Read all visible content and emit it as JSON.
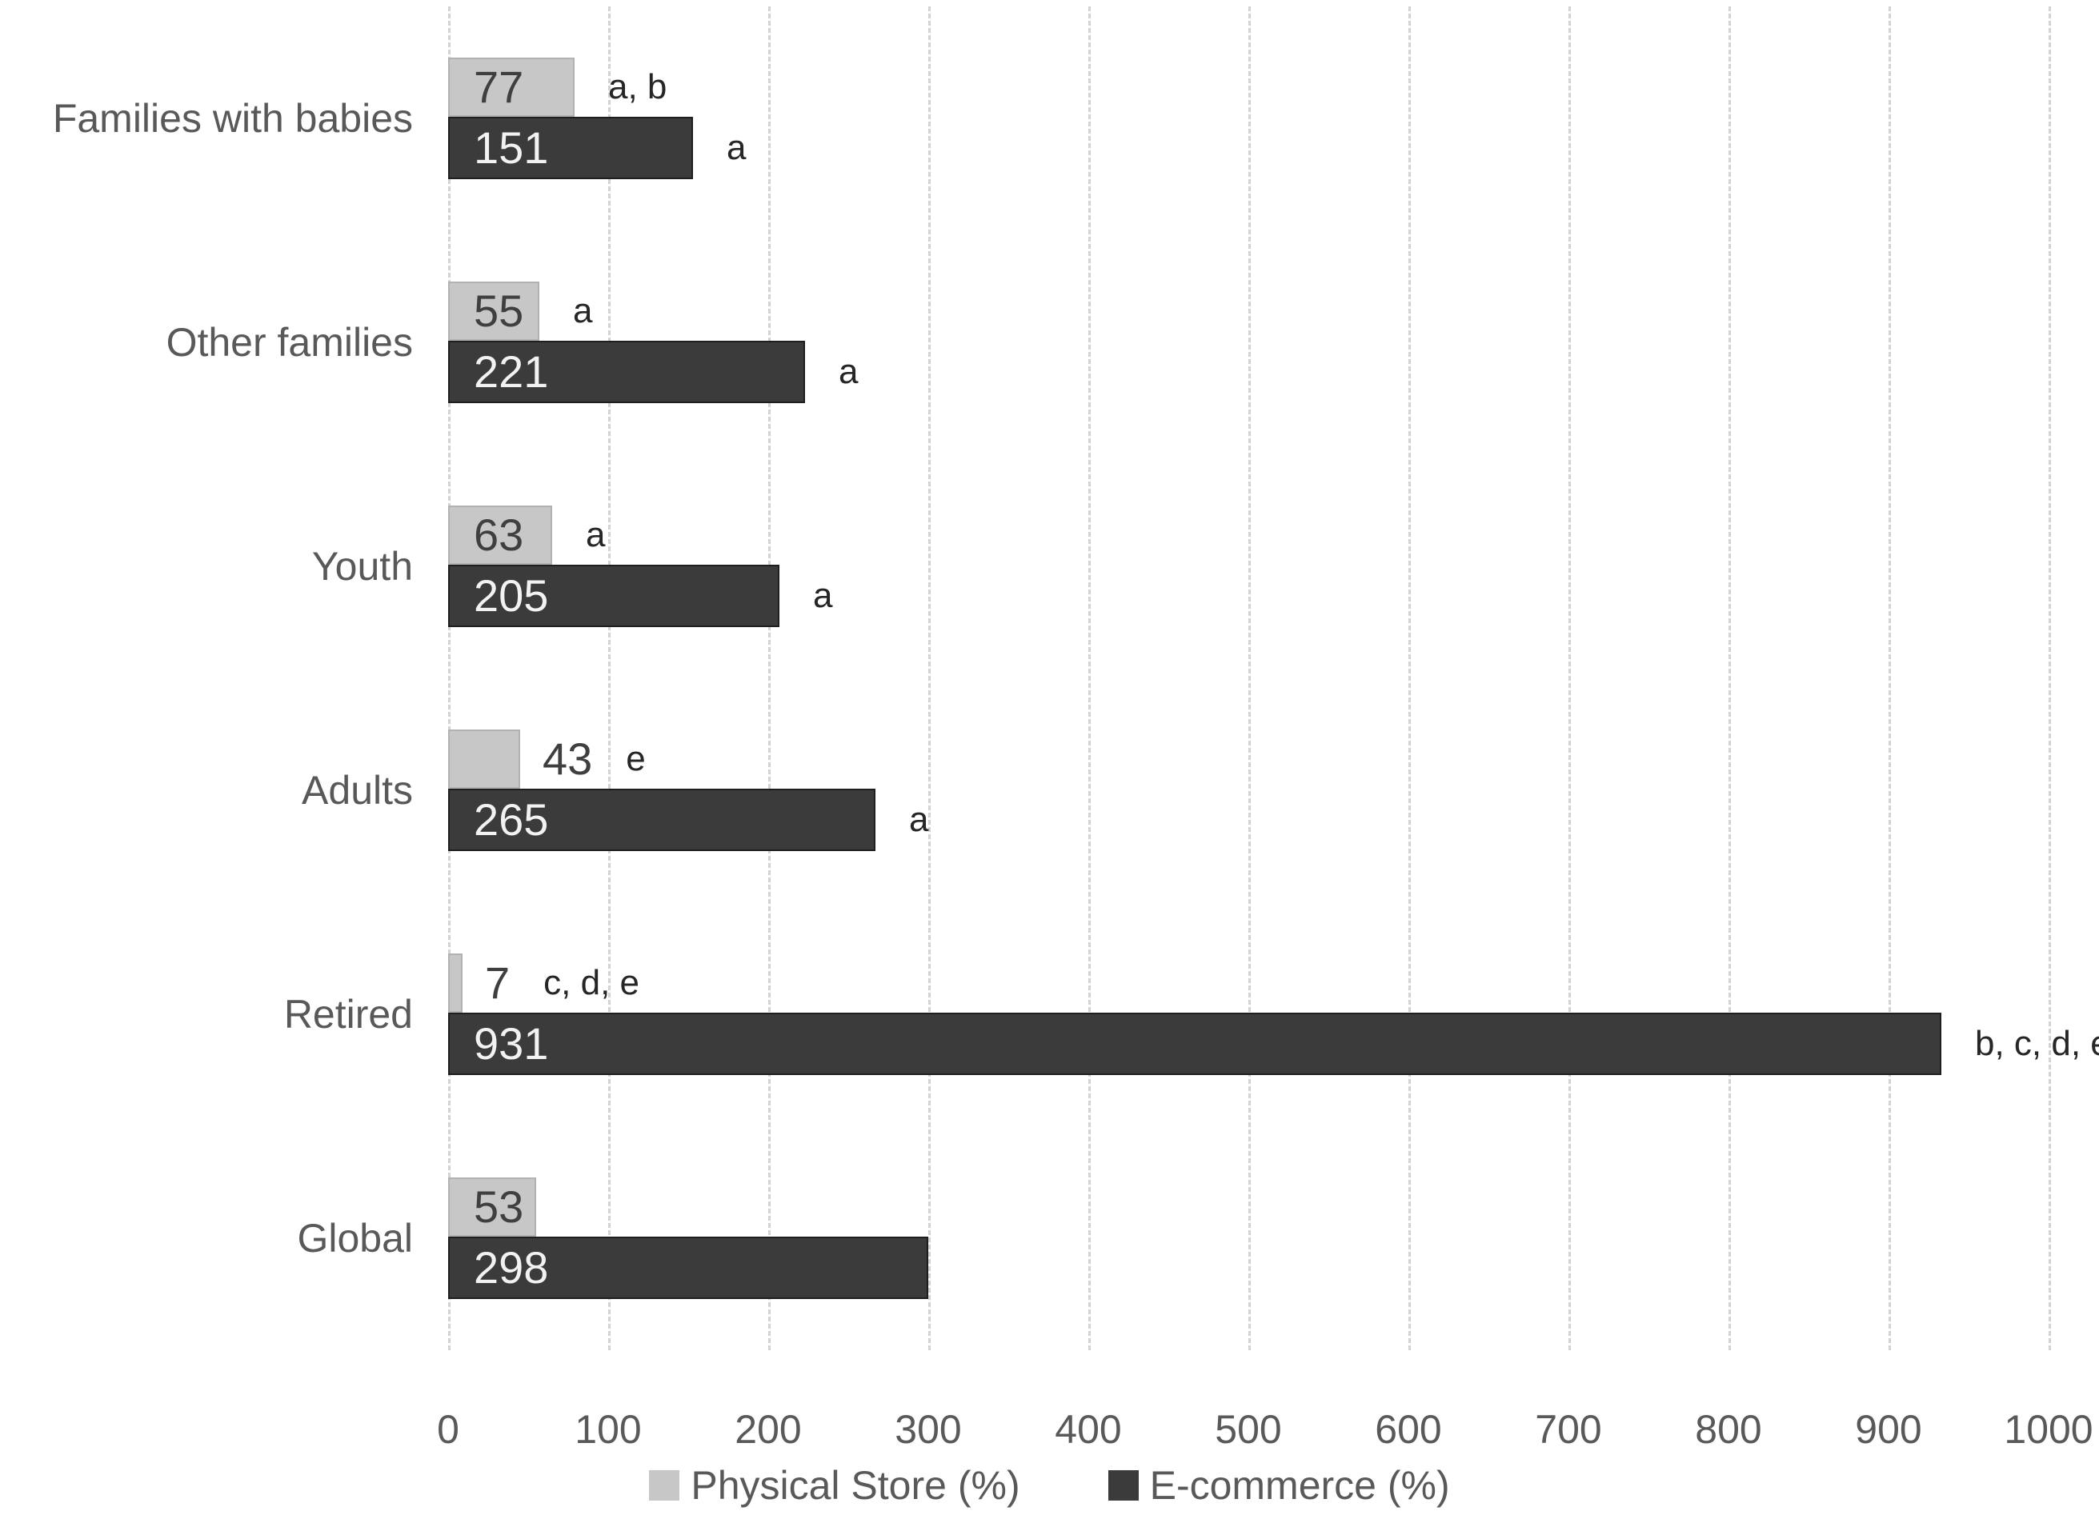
{
  "chart_data": {
    "type": "bar",
    "orientation": "horizontal",
    "title": "",
    "xlabel": "",
    "ylabel": "",
    "categories": [
      "Families with babies",
      "Other families",
      "Youth",
      "Adults",
      "Retired",
      "Global"
    ],
    "series": [
      {
        "name": "Physical Store (%)",
        "color": "#c7c7c7",
        "values": [
          77,
          55,
          63,
          43,
          7,
          53
        ],
        "annotations": [
          "a, b",
          "a",
          "a",
          "e",
          "c, d, e",
          ""
        ]
      },
      {
        "name": "E-commerce (%)",
        "color": "#3b3b3b",
        "values": [
          151,
          221,
          205,
          265,
          931,
          298
        ],
        "annotations": [
          "a",
          "a",
          "a",
          "a",
          "b, c, d, e",
          ""
        ]
      }
    ],
    "x_axis": {
      "min": 0,
      "max": 1000,
      "tick_step": 100,
      "ticks": [
        "0",
        "100",
        "200",
        "300",
        "400",
        "500",
        "600",
        "700",
        "800",
        "900",
        "1000"
      ]
    },
    "grid": true,
    "gridline_color": "#d2d2d2",
    "legend_position": "bottom"
  }
}
